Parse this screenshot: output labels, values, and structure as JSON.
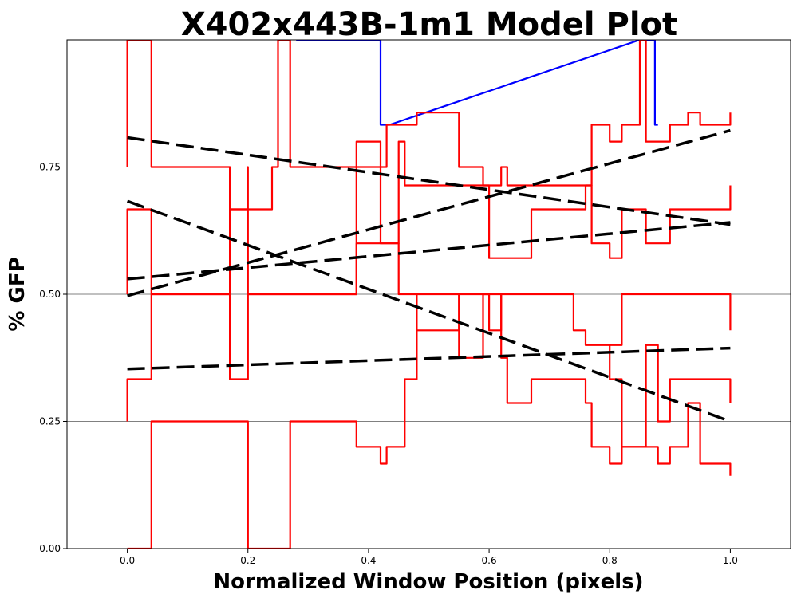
{
  "chart_data": {
    "type": "line",
    "title": "X402x443B-1m1 Model Plot",
    "xlabel": "Normalized Window Position (pixels)",
    "ylabel": "% GFP",
    "xlim": [
      -0.1,
      1.1
    ],
    "ylim": [
      0,
      1.0
    ],
    "x_ticks": [
      0.0,
      0.2,
      0.4,
      0.6,
      0.8,
      1.0
    ],
    "x_tick_labels": [
      "0.0",
      "0.2",
      "0.4",
      "0.6",
      "0.8",
      "1.0"
    ],
    "y_ticks": [
      0.0,
      0.25,
      0.5,
      0.75
    ],
    "y_tick_labels": [
      "0.00",
      "0.25",
      "0.50",
      "0.75"
    ],
    "grid": "horizontal",
    "colors": {
      "model": "#0000ff",
      "observed": "#ff0000",
      "trend": "#000000",
      "grid": "#808080"
    },
    "series": [
      {
        "style": "model",
        "points": [
          [
            0.28,
            1.0
          ],
          [
            0.42,
            1.0
          ],
          [
            0.42,
            0.833
          ],
          [
            0.435,
            0.833
          ],
          [
            0.85,
            1.0
          ],
          [
            0.875,
            1.0
          ],
          [
            0.875,
            0.833
          ],
          [
            0.88,
            0.833
          ]
        ]
      },
      {
        "style": "observed",
        "points": [
          [
            0,
            0.75
          ],
          [
            0,
            1.0
          ],
          [
            0.04,
            1.0
          ],
          [
            0.04,
            0.75
          ],
          [
            0.17,
            0.75
          ],
          [
            0.17,
            0.667
          ],
          [
            0.2,
            0.667
          ],
          [
            0.2,
            0.75
          ],
          [
            0.2,
            0.667
          ],
          [
            0.24,
            0.667
          ],
          [
            0.24,
            0.75
          ],
          [
            0.25,
            0.75
          ],
          [
            0.25,
            1.0
          ],
          [
            0.27,
            1.0
          ],
          [
            0.27,
            0.75
          ],
          [
            0.38,
            0.75
          ],
          [
            0.38,
            0.75
          ],
          [
            0.4,
            0.75
          ],
          [
            0.4,
            0.75
          ],
          [
            0.43,
            0.75
          ],
          [
            0.43,
            0.833
          ],
          [
            0.45,
            0.833
          ],
          [
            0.45,
            0.833
          ],
          [
            0.48,
            0.833
          ],
          [
            0.48,
            0.857
          ],
          [
            0.55,
            0.857
          ],
          [
            0.55,
            0.75
          ],
          [
            0.59,
            0.75
          ],
          [
            0.59,
            0.714
          ],
          [
            0.62,
            0.714
          ],
          [
            0.62,
            0.75
          ],
          [
            0.63,
            0.75
          ],
          [
            0.63,
            0.714
          ],
          [
            0.66,
            0.714
          ],
          [
            0.66,
            0.714
          ],
          [
            0.74,
            0.714
          ],
          [
            0.74,
            0.714
          ],
          [
            0.77,
            0.714
          ],
          [
            0.77,
            0.833
          ],
          [
            0.8,
            0.833
          ],
          [
            0.8,
            0.8
          ],
          [
            0.82,
            0.8
          ],
          [
            0.82,
            0.833
          ],
          [
            0.85,
            0.833
          ],
          [
            0.85,
            1.0
          ],
          [
            0.86,
            1.0
          ],
          [
            0.86,
            0.8
          ],
          [
            0.9,
            0.8
          ],
          [
            0.9,
            0.833
          ],
          [
            0.93,
            0.833
          ],
          [
            0.93,
            0.857
          ],
          [
            0.95,
            0.857
          ],
          [
            0.95,
            0.833
          ],
          [
            1.0,
            0.833
          ],
          [
            1.0,
            0.857
          ]
        ]
      },
      {
        "style": "observed",
        "points": [
          [
            0,
            0.5
          ],
          [
            0,
            0.667
          ],
          [
            0.04,
            0.667
          ],
          [
            0.04,
            0.5
          ],
          [
            0.17,
            0.5
          ],
          [
            0.17,
            0.667
          ],
          [
            0.2,
            0.667
          ],
          [
            0.2,
            0.5
          ],
          [
            0.27,
            0.5
          ],
          [
            0.27,
            0.5
          ],
          [
            0.38,
            0.5
          ],
          [
            0.38,
            0.8
          ],
          [
            0.42,
            0.8
          ],
          [
            0.42,
            0.6
          ],
          [
            0.43,
            0.6
          ],
          [
            0.43,
            0.6
          ],
          [
            0.45,
            0.6
          ],
          [
            0.45,
            0.8
          ],
          [
            0.46,
            0.8
          ],
          [
            0.46,
            0.714
          ],
          [
            0.55,
            0.714
          ],
          [
            0.55,
            0.714
          ],
          [
            0.6,
            0.714
          ],
          [
            0.6,
            0.571
          ],
          [
            0.63,
            0.571
          ],
          [
            0.63,
            0.571
          ],
          [
            0.67,
            0.571
          ],
          [
            0.67,
            0.667
          ],
          [
            0.76,
            0.667
          ],
          [
            0.76,
            0.714
          ],
          [
            0.77,
            0.714
          ],
          [
            0.77,
            0.6
          ],
          [
            0.8,
            0.6
          ],
          [
            0.8,
            0.571
          ],
          [
            0.82,
            0.571
          ],
          [
            0.82,
            0.667
          ],
          [
            0.85,
            0.667
          ],
          [
            0.85,
            0.667
          ],
          [
            0.86,
            0.667
          ],
          [
            0.86,
            0.6
          ],
          [
            0.9,
            0.6
          ],
          [
            0.9,
            0.667
          ],
          [
            0.95,
            0.667
          ],
          [
            0.95,
            0.667
          ],
          [
            1.0,
            0.667
          ],
          [
            1.0,
            0.714
          ]
        ]
      },
      {
        "style": "observed",
        "points": [
          [
            0,
            0.25
          ],
          [
            0,
            0.333
          ],
          [
            0.04,
            0.333
          ],
          [
            0.04,
            0.5
          ],
          [
            0.17,
            0.5
          ],
          [
            0.17,
            0.333
          ],
          [
            0.2,
            0.333
          ],
          [
            0.2,
            0.5
          ],
          [
            0.27,
            0.5
          ],
          [
            0.27,
            0.5
          ],
          [
            0.38,
            0.5
          ],
          [
            0.38,
            0.6
          ],
          [
            0.45,
            0.6
          ],
          [
            0.45,
            0.5
          ],
          [
            0.48,
            0.5
          ],
          [
            0.48,
            0.429
          ],
          [
            0.55,
            0.429
          ],
          [
            0.55,
            0.5
          ],
          [
            0.6,
            0.5
          ],
          [
            0.6,
            0.429
          ],
          [
            0.62,
            0.429
          ],
          [
            0.62,
            0.5
          ],
          [
            0.66,
            0.5
          ],
          [
            0.66,
            0.5
          ],
          [
            0.74,
            0.5
          ],
          [
            0.74,
            0.429
          ],
          [
            0.76,
            0.429
          ],
          [
            0.76,
            0.4
          ],
          [
            0.8,
            0.4
          ],
          [
            0.8,
            0.4
          ],
          [
            0.82,
            0.4
          ],
          [
            0.82,
            0.5
          ],
          [
            0.86,
            0.5
          ],
          [
            0.86,
            0.5
          ],
          [
            0.9,
            0.5
          ],
          [
            0.9,
            0.5
          ],
          [
            0.95,
            0.5
          ],
          [
            0.95,
            0.5
          ],
          [
            1.0,
            0.5
          ],
          [
            1.0,
            0.429
          ]
        ]
      },
      {
        "style": "observed",
        "points": [
          [
            0,
            0.0
          ],
          [
            0,
            0.0
          ],
          [
            0.04,
            0.0
          ],
          [
            0.04,
            0.25
          ],
          [
            0.17,
            0.25
          ],
          [
            0.17,
            0.25
          ],
          [
            0.2,
            0.25
          ],
          [
            0.2,
            0.0
          ],
          [
            0.27,
            0.0
          ],
          [
            0.27,
            0.25
          ],
          [
            0.38,
            0.25
          ],
          [
            0.38,
            0.2
          ],
          [
            0.42,
            0.2
          ],
          [
            0.42,
            0.167
          ],
          [
            0.43,
            0.167
          ],
          [
            0.43,
            0.2
          ],
          [
            0.46,
            0.2
          ],
          [
            0.46,
            0.333
          ],
          [
            0.48,
            0.333
          ],
          [
            0.48,
            0.5
          ],
          [
            0.55,
            0.5
          ],
          [
            0.55,
            0.375
          ],
          [
            0.59,
            0.375
          ],
          [
            0.59,
            0.5
          ],
          [
            0.62,
            0.5
          ],
          [
            0.62,
            0.375
          ],
          [
            0.63,
            0.375
          ],
          [
            0.63,
            0.286
          ],
          [
            0.67,
            0.286
          ],
          [
            0.67,
            0.333
          ],
          [
            0.76,
            0.333
          ],
          [
            0.76,
            0.286
          ],
          [
            0.77,
            0.286
          ],
          [
            0.77,
            0.2
          ],
          [
            0.8,
            0.2
          ],
          [
            0.8,
            0.167
          ],
          [
            0.82,
            0.167
          ],
          [
            0.82,
            0.2
          ],
          [
            0.86,
            0.2
          ],
          [
            0.86,
            0.2
          ],
          [
            0.88,
            0.2
          ],
          [
            0.88,
            0.167
          ],
          [
            0.9,
            0.167
          ],
          [
            0.9,
            0.2
          ],
          [
            0.93,
            0.2
          ],
          [
            0.93,
            0.286
          ],
          [
            0.95,
            0.286
          ],
          [
            0.95,
            0.167
          ],
          [
            1.0,
            0.167
          ],
          [
            1.0,
            0.143
          ]
        ]
      },
      {
        "style": "observed",
        "points": [
          [
            0.8,
            0.4
          ],
          [
            0.8,
            0.333
          ],
          [
            0.82,
            0.333
          ],
          [
            0.82,
            0.2
          ],
          [
            0.86,
            0.2
          ],
          [
            0.86,
            0.4
          ],
          [
            0.88,
            0.4
          ],
          [
            0.88,
            0.25
          ],
          [
            0.9,
            0.25
          ],
          [
            0.9,
            0.333
          ],
          [
            0.95,
            0.333
          ],
          [
            0.95,
            0.333
          ],
          [
            1.0,
            0.333
          ],
          [
            1.0,
            0.286
          ]
        ]
      },
      {
        "style": "trend",
        "points": [
          [
            0,
            0.808
          ],
          [
            1.0,
            0.637
          ]
        ]
      },
      {
        "style": "trend",
        "points": [
          [
            0,
            0.683
          ],
          [
            1.0,
            0.25
          ]
        ]
      },
      {
        "style": "trend",
        "points": [
          [
            0,
            0.497
          ],
          [
            1.0,
            0.822
          ]
        ]
      },
      {
        "style": "trend",
        "points": [
          [
            0,
            0.53
          ],
          [
            1.0,
            0.641
          ]
        ]
      },
      {
        "style": "trend",
        "points": [
          [
            0,
            0.353
          ],
          [
            1.0,
            0.394
          ]
        ]
      }
    ]
  }
}
